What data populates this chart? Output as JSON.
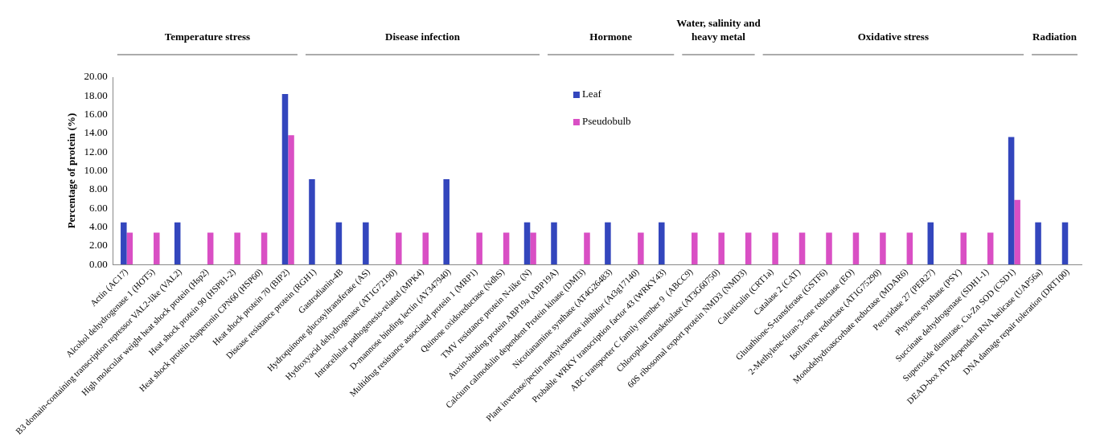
{
  "chart_data": {
    "type": "bar",
    "ylabel": "Percentage of protein (%)",
    "categories": [
      "Actin (AC17)",
      "Alcohol dehydrogenase 1 (HOT5)",
      "B3 domain-containing transcription repressor VAL2-like (VAL2)",
      "High molecular weight heat shock protein (Hsp2)",
      "Heat shock protein 90 (HSP81-2)",
      "Heat shock protein chaperonin CPN60 (HSP60)",
      "Heat shock protein 70 (BIP2)",
      "Disease resistance protein (RGH1)",
      "Gastrodianin-4B",
      "Hydroquinone glucosyltransferase (AS)",
      "Hydroxyacid dehydrogenase (AT1G72190)",
      "Intracellular pathogenesis-related (MPK4)",
      "D-mannose binding lectin (AY347940)",
      "Multidrug resistance associated protein 1 (MRP1)",
      "Quinone oxidoreductase (NdhS)",
      "TMV resistance protein N-like (N)",
      "Auxin-binding protein ABP19a (ABP19A)",
      "Calcium calmodulin dependent Protein kinase (DMI3)",
      "Nicotianamine synthase (AT4G26483)",
      "Plant invertase/pectin methylesterase inhibitor (At3g17140)",
      "Probable WRKY transcription factor 43 (WRKY43)",
      "ABC transporter C family member 9  (ABCC9)",
      "Chloroplast transketolase (AT3G60750)",
      "60S ribosomal export protein NMD3 (NMD3)",
      "Calreticulin (CRT1a)",
      "Catalase 2 (CAT)",
      "Glutathione-S-transferase (GSTF6)",
      "2-Methylene-furan-3-one reductase (EO)",
      "Isoflavone reductase (AT1G75290)",
      "Monodehydroascorbate reductase (MDAR6)",
      "Peroxidase 27 (PER27)",
      "Phytoene synthase (PSY)",
      "Succinate dehydrogenase (SDH1-1)",
      "Superoxide dismutase, Cu-Zn SOD (CSD1)",
      "DEAD-box ATP-dependent RNA helicase (UAP56a)",
      "DNA damage repair toleration (DRT100)"
    ],
    "series": [
      {
        "name": "Leaf",
        "color": "#3346bd",
        "values": [
          4.5,
          null,
          4.5,
          null,
          null,
          null,
          18.2,
          9.1,
          4.5,
          4.5,
          null,
          null,
          9.1,
          null,
          null,
          4.5,
          4.5,
          null,
          4.5,
          null,
          4.5,
          null,
          null,
          null,
          null,
          null,
          null,
          null,
          null,
          null,
          4.5,
          null,
          null,
          13.6,
          4.5,
          4.5
        ]
      },
      {
        "name": "Pseudobulb",
        "color": "#d94fc4",
        "values": [
          3.4,
          3.4,
          null,
          3.4,
          3.4,
          3.4,
          13.8,
          null,
          null,
          null,
          3.4,
          3.4,
          null,
          3.4,
          3.4,
          3.4,
          null,
          3.4,
          null,
          3.4,
          null,
          3.4,
          3.4,
          3.4,
          3.4,
          3.4,
          3.4,
          3.4,
          3.4,
          3.4,
          null,
          3.4,
          3.4,
          6.9,
          null,
          null
        ]
      }
    ],
    "ylim": [
      0,
      20
    ],
    "yticks": [
      {
        "value": 0,
        "label": "0.00"
      },
      {
        "value": 2,
        "label": "2.00"
      },
      {
        "value": 4,
        "label": "4.00"
      },
      {
        "value": 6,
        "label": "6.00"
      },
      {
        "value": 8,
        "label": "8.00"
      },
      {
        "value": 10,
        "label": "10.00"
      },
      {
        "value": 12,
        "label": "12.00"
      },
      {
        "value": 14,
        "label": "14.00"
      },
      {
        "value": 16,
        "label": "16.00"
      },
      {
        "value": 18,
        "label": "18.00"
      },
      {
        "value": 20,
        "label": "20.00"
      }
    ],
    "annotations": [
      "Temperature stress",
      "Disease infection",
      "Hormone",
      "Water, salinity and heavy metal",
      "Oxidative stress",
      "Radiation"
    ],
    "legend": "top",
    "grid": false
  }
}
